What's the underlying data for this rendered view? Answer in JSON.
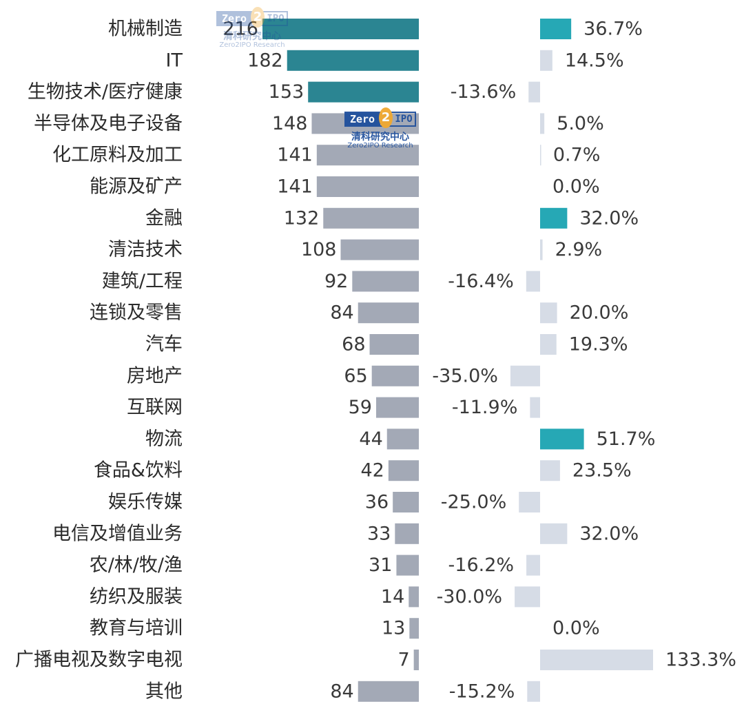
{
  "chart_data": {
    "type": "bar",
    "categories": [
      "机械制造",
      "IT",
      "生物技术/医疗健康",
      "半导体及电子设备",
      "化工原料及加工",
      "能源及矿产",
      "金融",
      "清洁技术",
      "建筑/工程",
      "连锁及零售",
      "汽车",
      "房地产",
      "互联网",
      "物流",
      "食品&饮料",
      "娱乐传媒",
      "电信及增值业务",
      "农/林/牧/渔",
      "纺织及服装",
      "教育与培训",
      "广播电视及数字电视",
      "其他"
    ],
    "series": [
      {
        "values": [
          216,
          182,
          153,
          148,
          141,
          141,
          132,
          108,
          92,
          84,
          68,
          65,
          59,
          44,
          42,
          36,
          33,
          31,
          14,
          13,
          7,
          84
        ],
        "labels": [
          "216",
          "182",
          "153",
          "148",
          "141",
          "141",
          "132",
          "108",
          "92",
          "84",
          "68",
          "65",
          "59",
          "44",
          "42",
          "36",
          "33",
          "31",
          "14",
          "13",
          "7",
          "84"
        ]
      },
      {
        "values": [
          36.7,
          14.5,
          -13.6,
          5.0,
          0.7,
          0.0,
          32.0,
          2.9,
          -16.4,
          20.0,
          19.3,
          -35.0,
          -11.9,
          51.7,
          23.5,
          -25.0,
          32.0,
          -16.2,
          -30.0,
          0.0,
          133.3,
          -15.2
        ],
        "labels": [
          "36.7%",
          "14.5%",
          "-13.6%",
          "5.0%",
          "0.7%",
          "0.0%",
          "32.0%",
          "2.9%",
          "-16.4%",
          "20.0%",
          "19.3%",
          "-35.0%",
          "-11.9%",
          "51.7%",
          "23.5%",
          "-25.0%",
          "32.0%",
          "-16.2%",
          "-30.0%",
          "0.0%",
          "133.3%",
          "-15.2%"
        ]
      }
    ],
    "colors": {
      "count_highlight": "#2b8592",
      "count_normal": "#a3a9b6",
      "growth_highlight": "#26a8b5",
      "growth_normal": "#d6dce6"
    },
    "highlighted_count": [
      0,
      1,
      2
    ],
    "highlighted_growth": [
      0,
      6,
      13
    ]
  },
  "watermark": {
    "logo_left": "Zero",
    "logo_mid": "2",
    "logo_right": "IPO",
    "cn": "清科研究中心",
    "en": "Zero2IPO Research"
  }
}
